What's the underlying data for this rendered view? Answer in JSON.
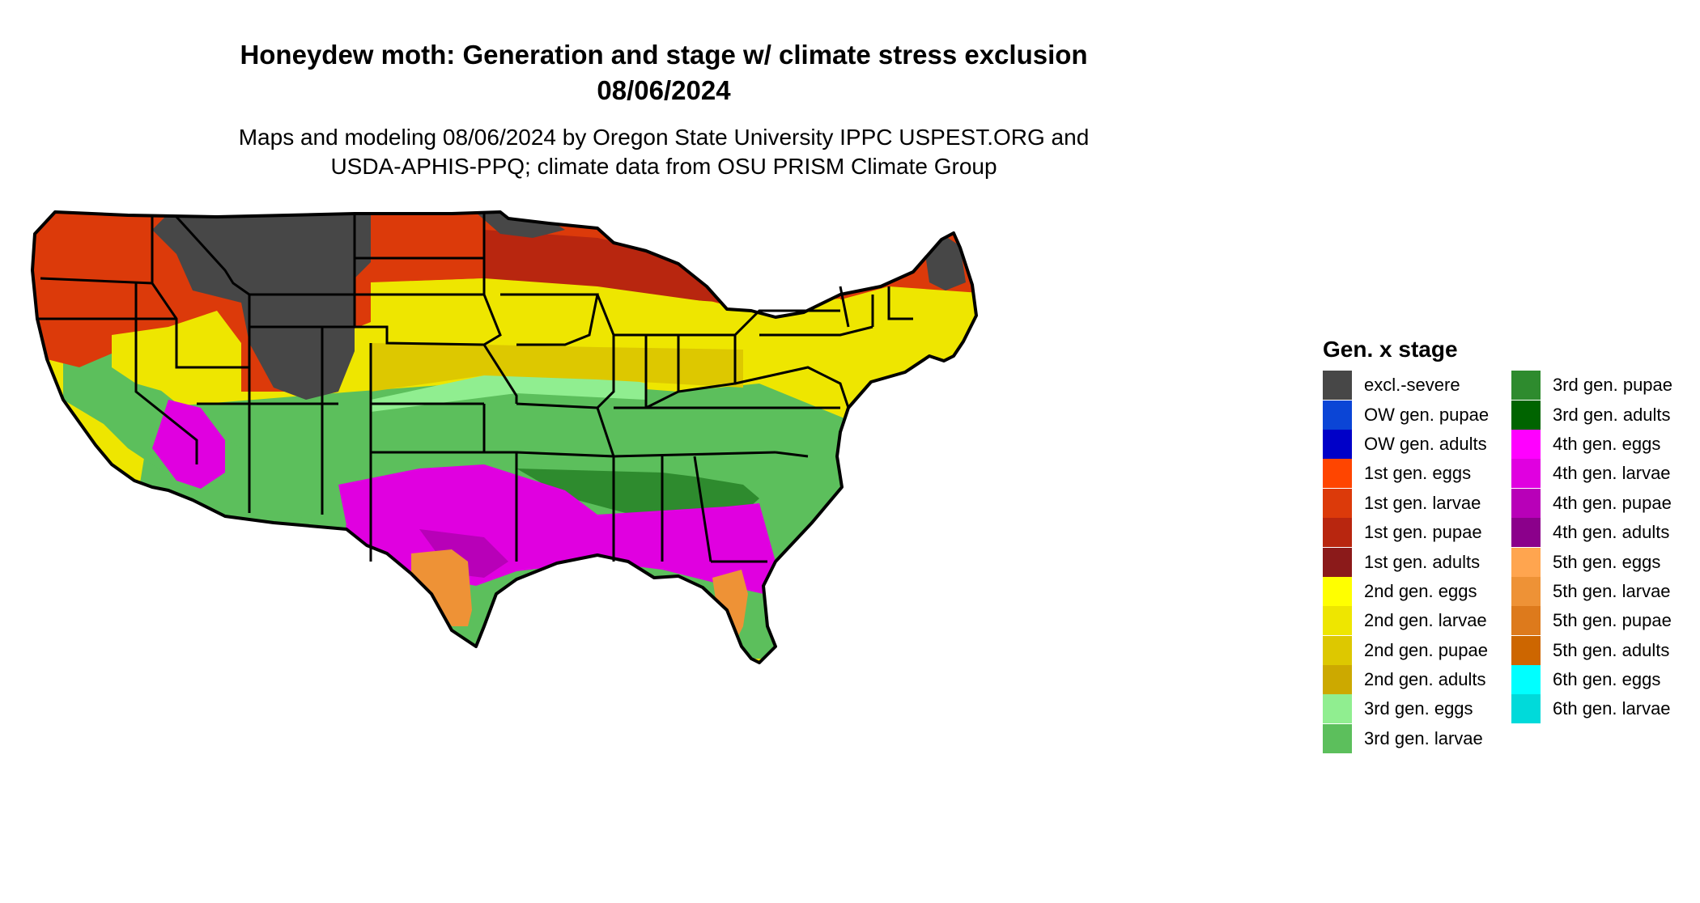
{
  "title_line1": "Honeydew moth: Generation and stage w/ climate stress exclusion",
  "title_line2": "08/06/2024",
  "subtitle_line1": "Maps and modeling 08/06/2024 by Oregon State University IPPC USPEST.ORG and",
  "subtitle_line2": "USDA-APHIS-PPQ; climate data from OSU PRISM Climate Group",
  "legend": {
    "title": "Gen. x stage",
    "col1": [
      {
        "label": "excl.-severe",
        "color": "#474747"
      },
      {
        "label": "OW gen. pupae",
        "color": "#0b45d6"
      },
      {
        "label": "OW gen. adults",
        "color": "#0000c8"
      },
      {
        "label": "1st gen. eggs",
        "color": "#ff4500"
      },
      {
        "label": "1st gen. larvae",
        "color": "#dc3a0a"
      },
      {
        "label": "1st gen. pupae",
        "color": "#b8260f"
      },
      {
        "label": "1st gen. adults",
        "color": "#8b1a1a"
      },
      {
        "label": "2nd gen. eggs",
        "color": "#ffff00"
      },
      {
        "label": "2nd gen. larvae",
        "color": "#eee600"
      },
      {
        "label": "2nd gen. pupae",
        "color": "#ddc800"
      },
      {
        "label": "2nd gen. adults",
        "color": "#cca900"
      },
      {
        "label": "3rd gen. eggs",
        "color": "#90ee90"
      },
      {
        "label": "3rd gen. larvae",
        "color": "#5cbf5c"
      }
    ],
    "col2": [
      {
        "label": "3rd gen. pupae",
        "color": "#2e8b2e"
      },
      {
        "label": "3rd gen. adults",
        "color": "#006400"
      },
      {
        "label": "4th gen. eggs",
        "color": "#ff00ff"
      },
      {
        "label": "4th gen. larvae",
        "color": "#e000e0"
      },
      {
        "label": "4th gen. pupae",
        "color": "#b800b8"
      },
      {
        "label": "4th gen. adults",
        "color": "#8b008b"
      },
      {
        "label": "5th gen. eggs",
        "color": "#ffa54f"
      },
      {
        "label": "5th gen. larvae",
        "color": "#ee9236"
      },
      {
        "label": "5th gen. pupae",
        "color": "#dd7a1c"
      },
      {
        "label": "5th gen. adults",
        "color": "#cd6600"
      },
      {
        "label": "6th gen. eggs",
        "color": "#00ffff"
      },
      {
        "label": "6th gen. larvae",
        "color": "#00dada"
      }
    ]
  }
}
